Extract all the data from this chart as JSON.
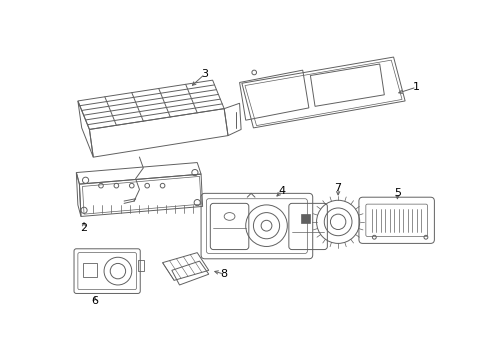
{
  "bg_color": "#ffffff",
  "line_color": "#606060",
  "label_color": "#000000",
  "lw": 0.7
}
